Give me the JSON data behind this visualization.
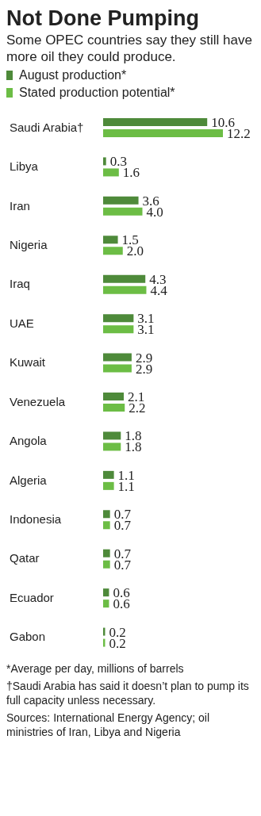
{
  "chart_data": {
    "type": "bar",
    "orientation": "horizontal",
    "title": "Not Done Pumping",
    "subtitle": "Some OPEC countries say they still have more oil they could produce.",
    "categories": [
      "Saudi Arabia†",
      "Libya",
      "Iran",
      "Nigeria",
      "Iraq",
      "UAE",
      "Kuwait",
      "Venezuela",
      "Angola",
      "Algeria",
      "Indonesia",
      "Qatar",
      "Ecuador",
      "Gabon"
    ],
    "series": [
      {
        "name": "August production*",
        "color": "#4e8a3a",
        "values": [
          10.6,
          0.3,
          3.6,
          1.5,
          4.3,
          3.1,
          2.9,
          2.1,
          1.8,
          1.1,
          0.7,
          0.7,
          0.6,
          0.2
        ],
        "value_labels": [
          "10.6",
          "0.3",
          "3.6",
          "1.5",
          "4.3",
          "3.1",
          "2.9",
          "2.1",
          "1.8",
          "1.1",
          "0.7",
          "0.7",
          "0.6",
          "0.2"
        ]
      },
      {
        "name": "Stated production potential*",
        "color": "#6cbd45",
        "values": [
          12.2,
          1.6,
          4.0,
          2.0,
          4.4,
          3.1,
          2.9,
          2.2,
          1.8,
          1.1,
          0.7,
          0.7,
          0.6,
          0.2
        ],
        "value_labels": [
          "12.2",
          "1.6",
          "4.0",
          "2.0",
          "4.4",
          "3.1",
          "2.9",
          "2.2",
          "1.8",
          "1.1",
          "0.7",
          "0.7",
          "0.6",
          "0.2"
        ]
      }
    ],
    "legend": "top left",
    "annotations": [
      "*Average per day, millions of barrels",
      "†Saudi Arabia has said it doesn’t plan to pump its full capacity unless necessary.",
      "Sources: International Energy Agency; oil ministries of Iran, Libya and Nigeria"
    ]
  }
}
